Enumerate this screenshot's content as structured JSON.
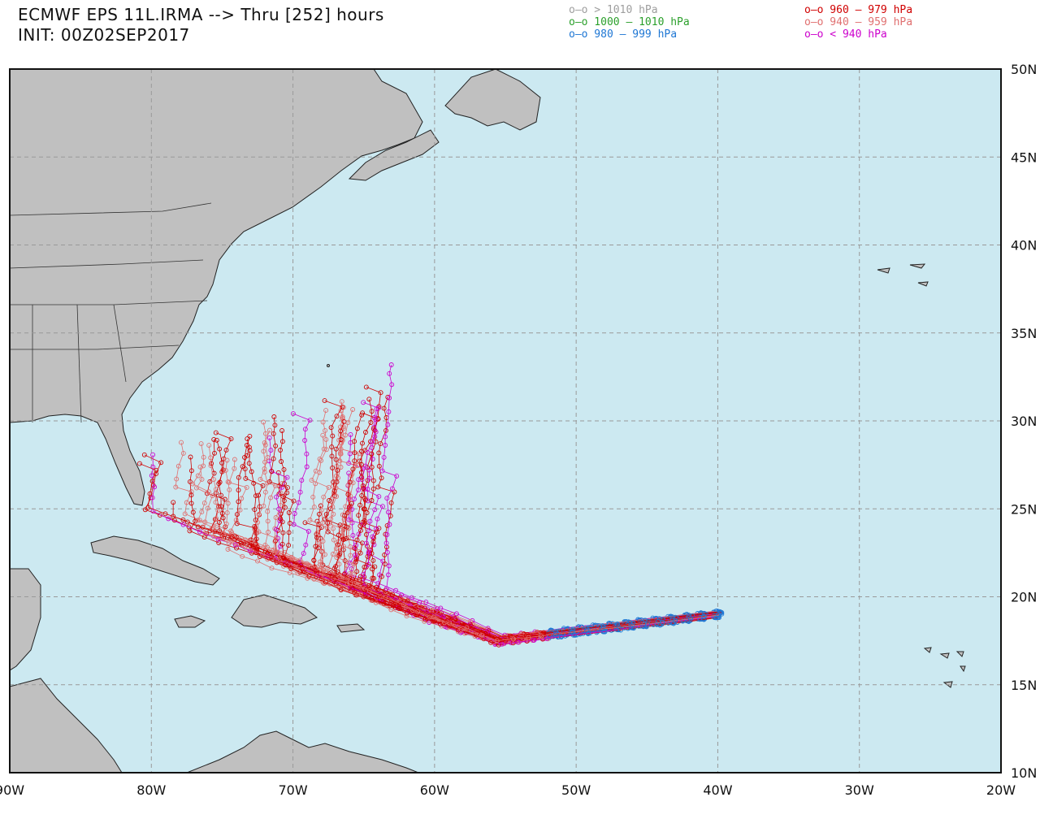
{
  "header": {
    "title": "ECMWF EPS 11L.IRMA --> Thru [252] hours",
    "init": "INIT: 00Z02SEP2017"
  },
  "legend": {
    "left": [
      {
        "label": "o—o > 1010 hPa",
        "color": "#9e9e9e"
      },
      {
        "label": "o—o 1000 — 1010 hPa",
        "color": "#2ca02c"
      },
      {
        "label": "o—o 980 — 999 hPa",
        "color": "#1f77d4"
      }
    ],
    "right": [
      {
        "label": "o—o 960 — 979 hPa",
        "color": "#d00000"
      },
      {
        "label": "o—o 940 — 959 hPa",
        "color": "#e07070"
      },
      {
        "label": "o—o < 940 hPa",
        "color": "#cc00cc"
      }
    ]
  },
  "map": {
    "lon_range": [
      -90,
      -20
    ],
    "lat_range": [
      10,
      50
    ],
    "lon_ticks": [
      "90W",
      "80W",
      "70W",
      "60W",
      "50W",
      "40W",
      "30W",
      "20W"
    ],
    "lat_ticks": [
      "50N",
      "45N",
      "40N",
      "35N",
      "30N",
      "25N",
      "20N",
      "15N",
      "10N"
    ],
    "colors": {
      "ocean": "#cce9f1",
      "land": "#c0c0c0",
      "border": "#111111",
      "grid": "#999999"
    }
  }
}
